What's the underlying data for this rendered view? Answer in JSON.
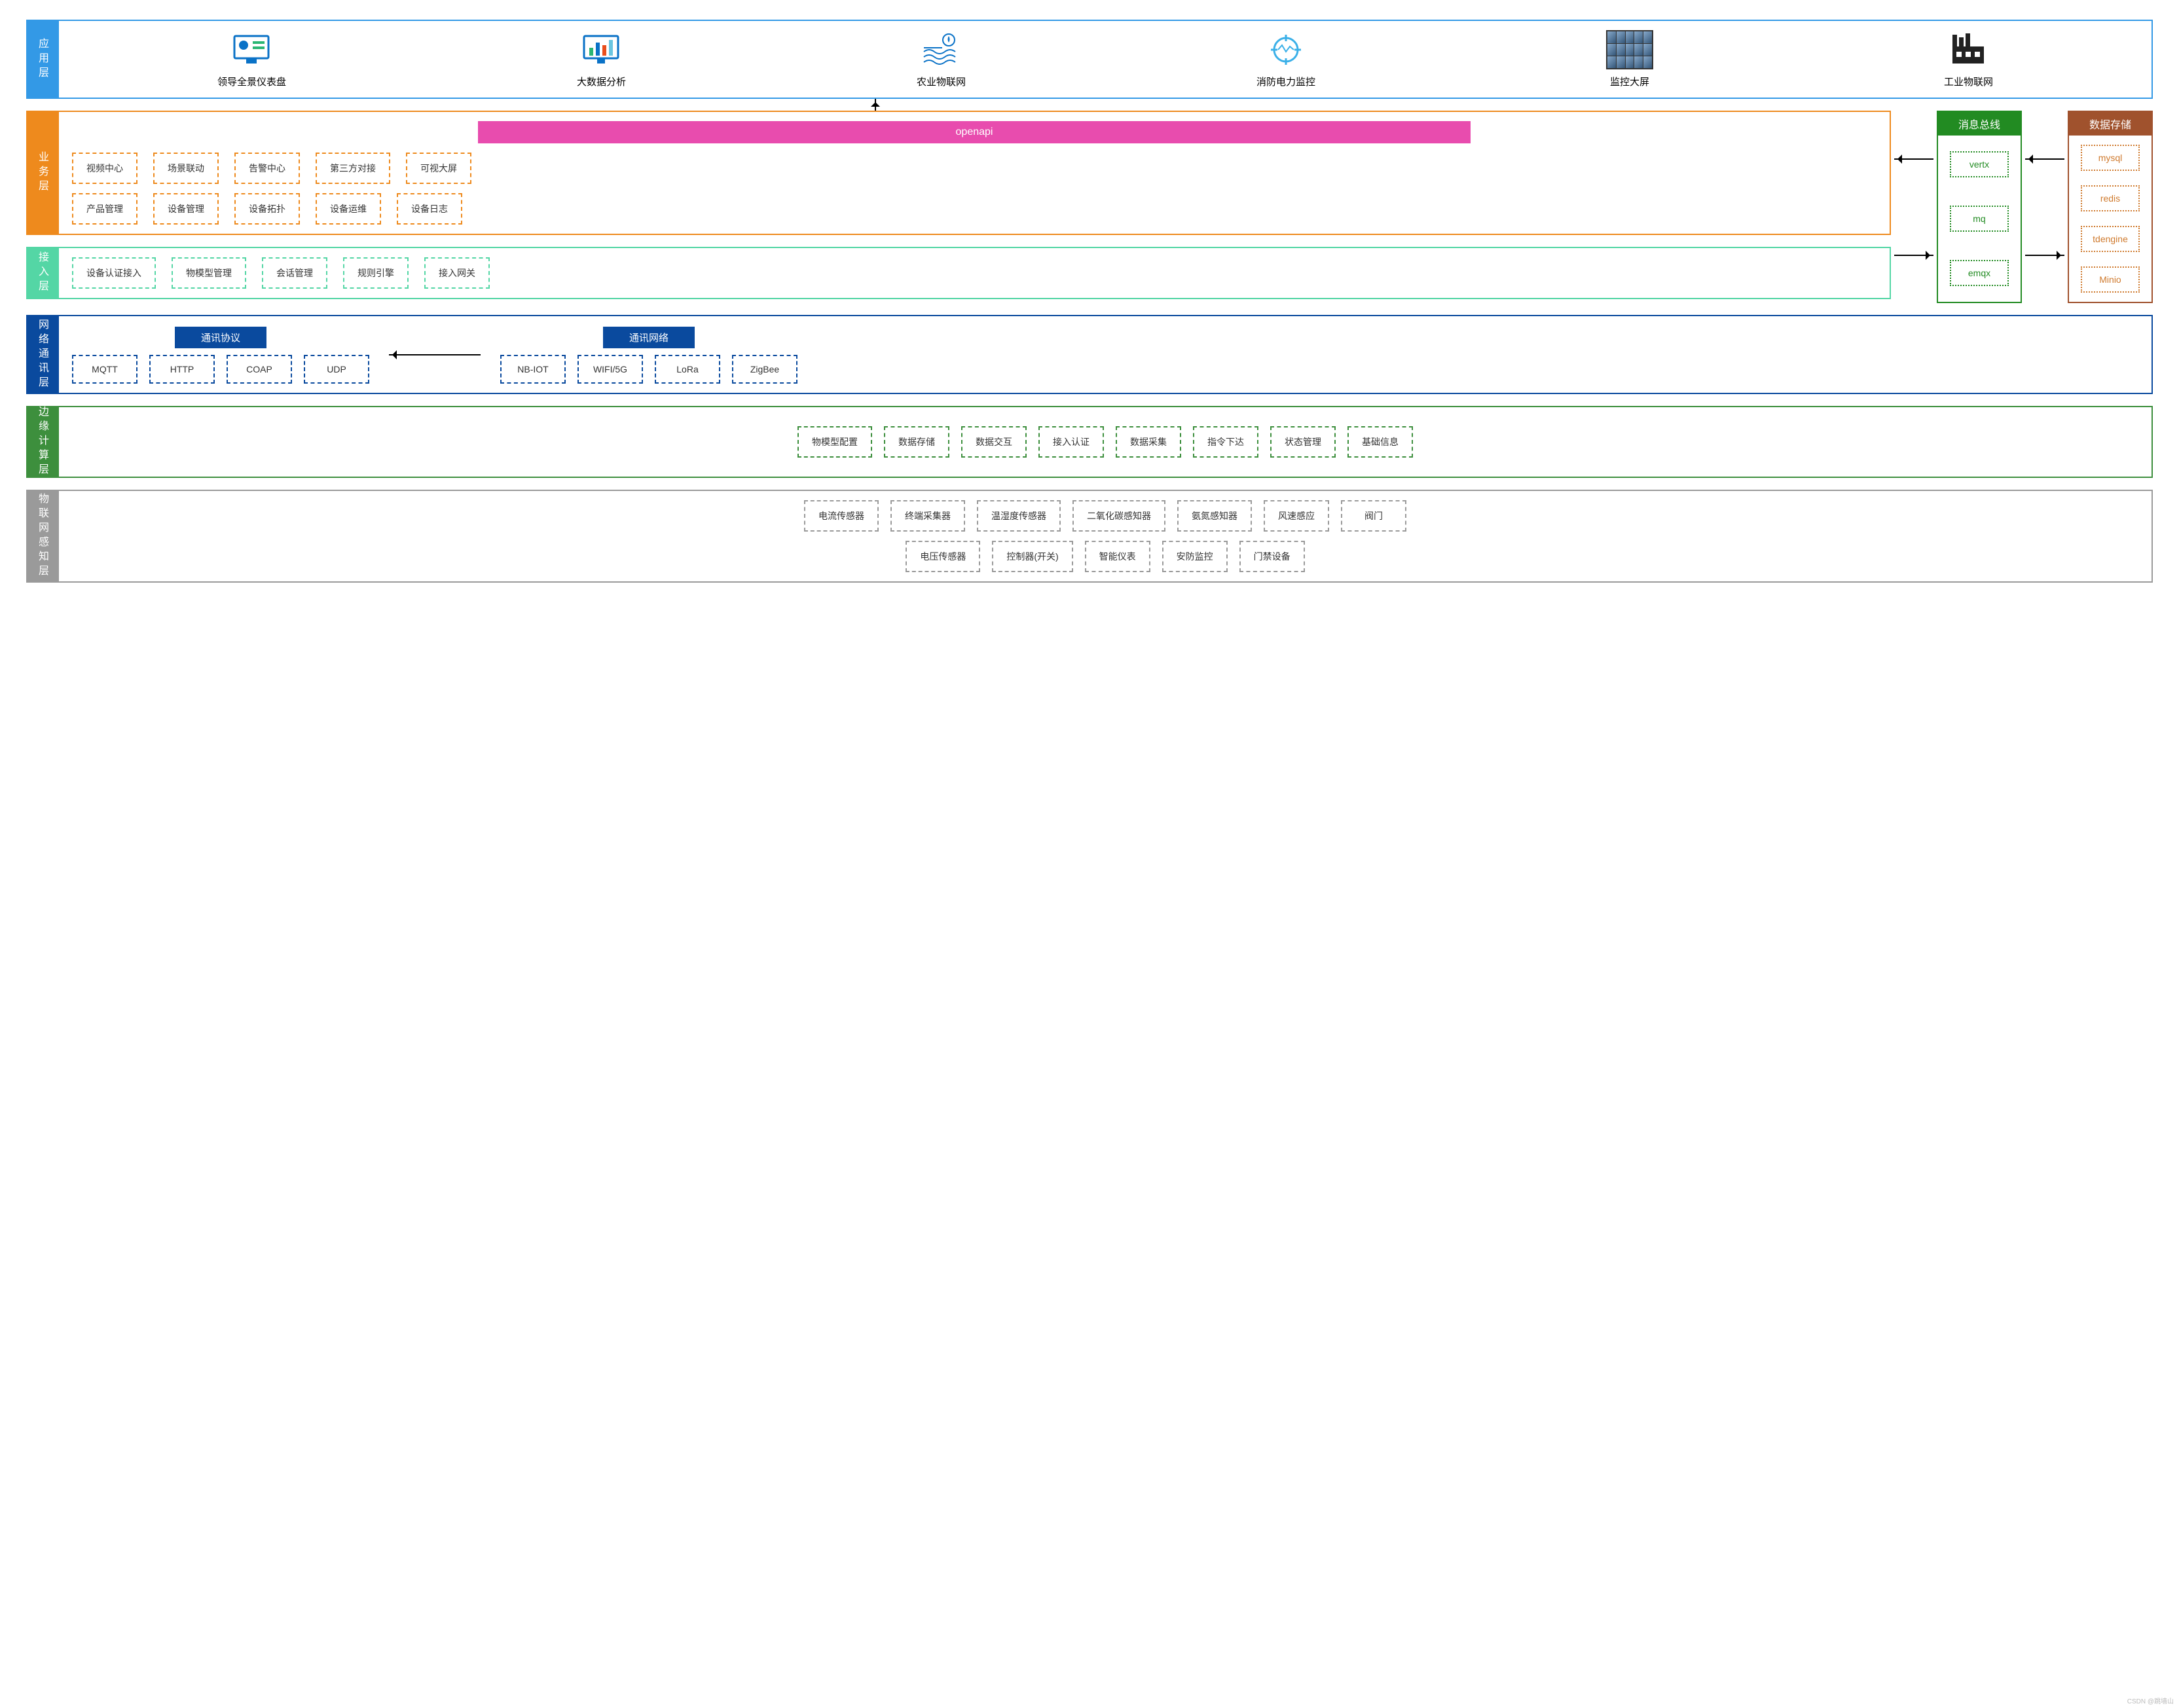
{
  "colors": {
    "app": "#3399e6",
    "biz": "#ee8a1d",
    "access": "#54d6a5",
    "net": "#0a4a9e",
    "edge": "#3d8f3d",
    "sense": "#9a9a9a",
    "bus_header": "#228b22",
    "store_header": "#a0522d",
    "openapi_bg": "#e84cae",
    "dash_biz": "#ee8a1d",
    "dash_access": "#54d6a5",
    "dash_net": "#0a4a9e",
    "dash_edge": "#3d8f3d",
    "dash_sense": "#9a9a9a",
    "dot_bus": "#228b22",
    "dot_store": "#cf7a2e"
  },
  "layers": {
    "app": {
      "label": "应用层",
      "items": [
        {
          "label": "领导全景仪表盘",
          "icon": "dashboard"
        },
        {
          "label": "大数据分析",
          "icon": "chart"
        },
        {
          "label": "农业物联网",
          "icon": "water"
        },
        {
          "label": "消防电力监控",
          "icon": "target"
        },
        {
          "label": "监控大屏",
          "icon": "videowall"
        },
        {
          "label": "工业物联网",
          "icon": "factory"
        }
      ]
    },
    "biz": {
      "label": "业务层",
      "openapi": "openapi",
      "row1": [
        "视频中心",
        "场景联动",
        "告警中心",
        "第三方对接",
        "可视大屏"
      ],
      "row2": [
        "产品管理",
        "设备管理",
        "设备拓扑",
        "设备运维",
        "设备日志"
      ]
    },
    "access": {
      "label": "接入层",
      "items": [
        "设备认证接入",
        "物模型管理",
        "会话管理",
        "规则引擎",
        "接入网关"
      ]
    },
    "bus": {
      "header": "消息总线",
      "items": [
        "vertx",
        "mq",
        "emqx"
      ]
    },
    "store": {
      "header": "数据存储",
      "items": [
        "mysql",
        "redis",
        "tdengine",
        "Minio"
      ]
    },
    "net": {
      "label": "网络通讯层",
      "proto_header": "通讯协议",
      "net_header": "通讯网络",
      "protocols": [
        "MQTT",
        "HTTP",
        "COAP",
        "UDP"
      ],
      "networks": [
        "NB-IOT",
        "WIFI/5G",
        "LoRa",
        "ZigBee"
      ]
    },
    "edge": {
      "label": "边缘计算层",
      "items": [
        "物模型配置",
        "数据存储",
        "数据交互",
        "接入认证",
        "数据采集",
        "指令下达",
        "状态管理",
        "基础信息"
      ]
    },
    "sense": {
      "label": "物联网感知层",
      "row1": [
        "电流传感器",
        "终端采集器",
        "温湿度传感器",
        "二氧化碳感知器",
        "氨氮感知器",
        "风速感应",
        "阀门"
      ],
      "row2": [
        "电压传感器",
        "控制器(开关)",
        "智能仪表",
        "安防监控",
        "门禁设备"
      ]
    }
  },
  "watermark": "CSDN @跳墙山"
}
